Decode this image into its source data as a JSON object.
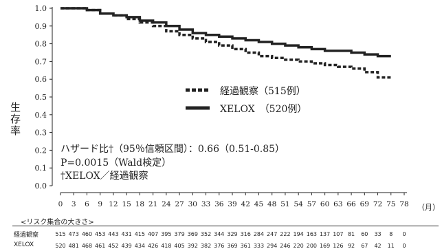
{
  "chart_data": {
    "type": "line",
    "ylabel": "生存率",
    "xunit": "（月）",
    "y_ticks": [
      "1.0",
      "0.9",
      "0.8",
      "0.7",
      "0.6",
      "0.5",
      "0.4",
      "0.3",
      "0.2",
      "0.1",
      "0.0"
    ],
    "x_ticks": [
      "0",
      "3",
      "6",
      "9",
      "12",
      "15",
      "18",
      "21",
      "24",
      "27",
      "30",
      "33",
      "36",
      "39",
      "42",
      "45",
      "48",
      "51",
      "54",
      "57",
      "60",
      "63",
      "66",
      "69",
      "72",
      "75",
      "78"
    ],
    "ylim": [
      0,
      1.0
    ],
    "xlim": [
      0,
      78
    ],
    "grid": false,
    "legend_position": "center",
    "series": [
      {
        "name": "経過観察（515例）",
        "style": "dashed",
        "x": [
          0,
          1,
          3,
          6,
          9,
          12,
          15,
          18,
          21,
          24,
          27,
          30,
          33,
          36,
          39,
          42,
          45,
          48,
          51,
          54,
          57,
          60,
          63,
          66,
          69,
          72,
          75
        ],
        "y": [
          1.0,
          1.0,
          1.0,
          0.99,
          0.97,
          0.96,
          0.94,
          0.92,
          0.9,
          0.87,
          0.85,
          0.83,
          0.81,
          0.79,
          0.77,
          0.75,
          0.73,
          0.72,
          0.71,
          0.7,
          0.69,
          0.68,
          0.67,
          0.66,
          0.64,
          0.61,
          0.61
        ]
      },
      {
        "name": "XELOX　（520例）",
        "style": "solid",
        "x": [
          0,
          1,
          3,
          6,
          9,
          12,
          15,
          18,
          21,
          24,
          27,
          30,
          33,
          36,
          39,
          42,
          45,
          48,
          51,
          54,
          57,
          60,
          63,
          66,
          69,
          72,
          75
        ],
        "y": [
          1.0,
          1.0,
          1.0,
          0.99,
          0.97,
          0.96,
          0.95,
          0.93,
          0.92,
          0.9,
          0.88,
          0.86,
          0.85,
          0.84,
          0.83,
          0.82,
          0.81,
          0.8,
          0.79,
          0.78,
          0.77,
          0.76,
          0.76,
          0.75,
          0.74,
          0.73,
          0.73
        ]
      }
    ],
    "annotations": [
      "ハザード比†（95％信頼区間）：0.66（0.51‐0.85）",
      "P=0.0015（Wald検定）",
      "†XELOX／経過観察"
    ],
    "risk_table": {
      "title": "<リスク集合の大きさ>",
      "rows": [
        {
          "label": "経過観察",
          "values": [
            515,
            473,
            460,
            453,
            443,
            431,
            415,
            407,
            395,
            379,
            369,
            352,
            344,
            329,
            316,
            284,
            247,
            222,
            194,
            163,
            137,
            107,
            81,
            60,
            33,
            8,
            0
          ]
        },
        {
          "label": "XELOX",
          "values": [
            520,
            481,
            468,
            461,
            452,
            439,
            434,
            426,
            418,
            405,
            392,
            382,
            376,
            369,
            361,
            333,
            294,
            246,
            220,
            200,
            169,
            126,
            92,
            67,
            42,
            11,
            0
          ]
        }
      ]
    }
  }
}
